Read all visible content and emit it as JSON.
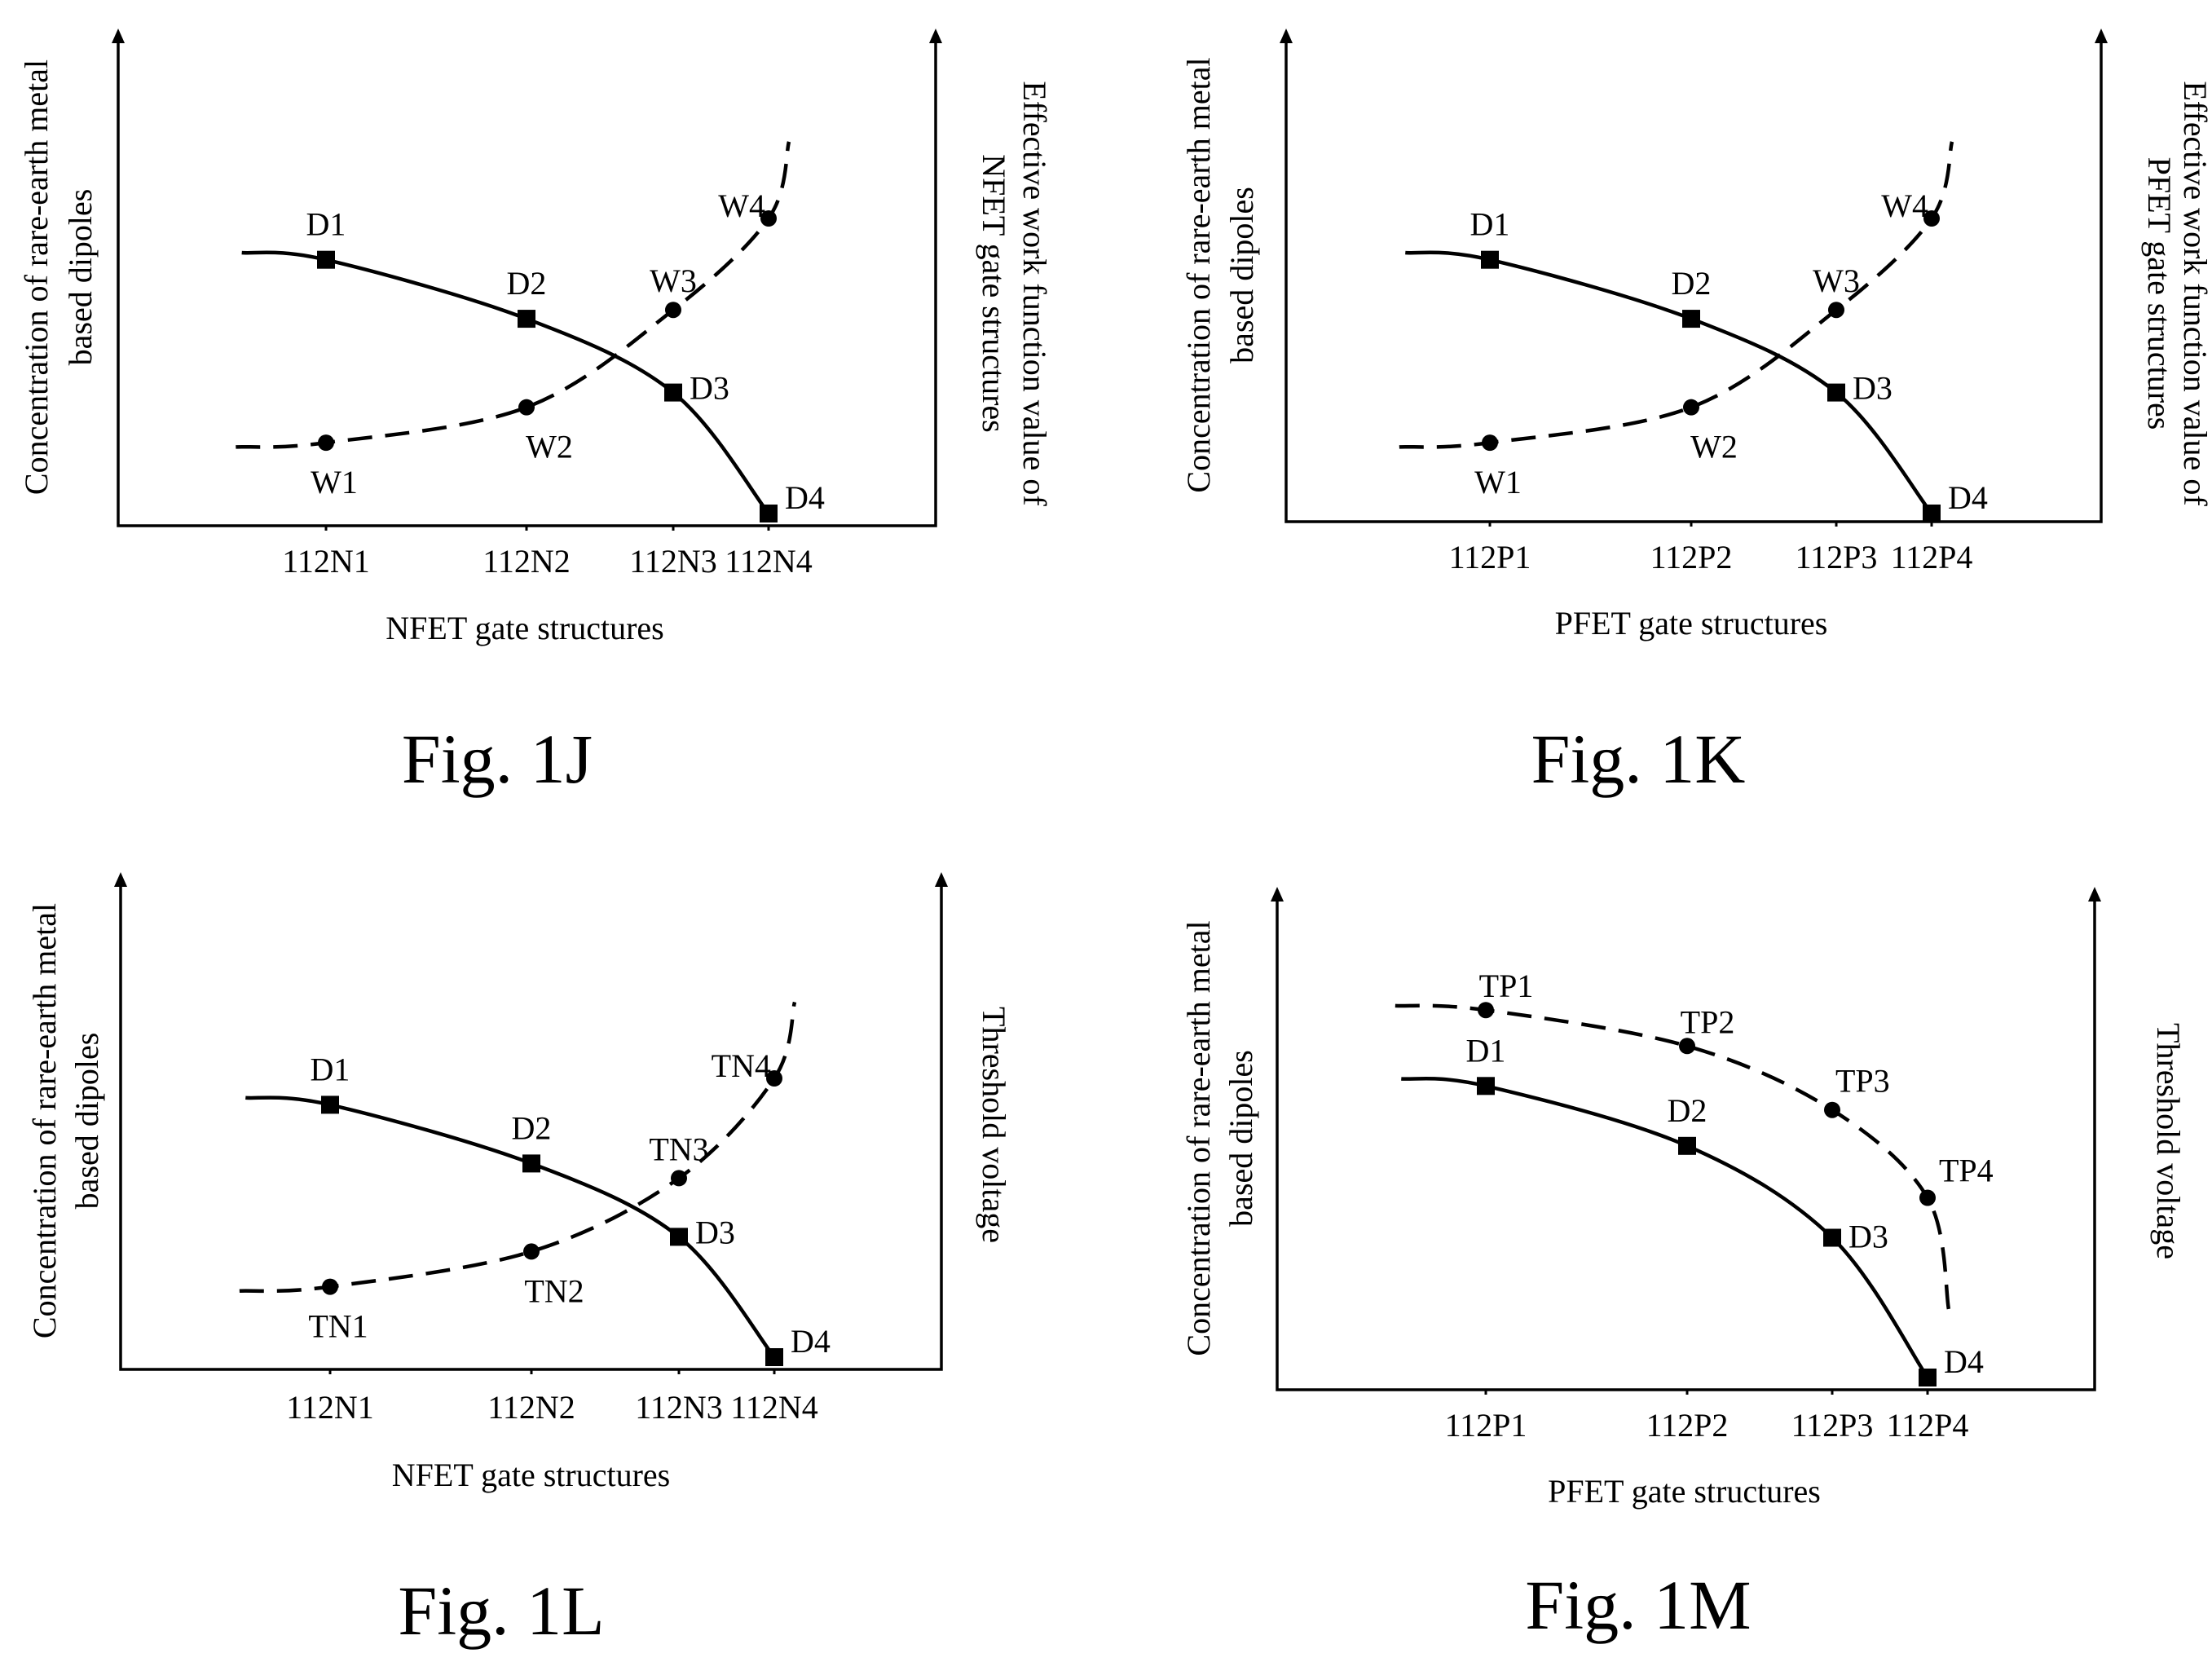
{
  "chart_data": [
    {
      "type": "line",
      "caption": "Fig. 1J",
      "xlabel": "NFET gate structures",
      "ylabel_left": [
        "Concentration of rare-earth metal",
        "based dipoles"
      ],
      "ylabel_right": [
        "Effective work function value of",
        "NFET gate structures"
      ],
      "categories": [
        "112N1",
        "112N2",
        "112N3",
        "112N4"
      ],
      "series": [
        {
          "style": "solid",
          "marker": "square",
          "labels": [
            "D1",
            "D2",
            "D3",
            "D4"
          ],
          "values": [
            0.86,
            0.66,
            0.41,
            0.0
          ]
        },
        {
          "style": "dashed",
          "marker": "circle",
          "labels": [
            "W1",
            "W2",
            "W3",
            "W4"
          ],
          "values": [
            0.24,
            0.36,
            0.69,
            1.0
          ]
        }
      ]
    },
    {
      "type": "line",
      "caption": "Fig. 1K",
      "xlabel": "PFET gate structures",
      "ylabel_left": [
        "Concentration of rare-earth metal",
        "based dipoles"
      ],
      "ylabel_right": [
        "Effective work function value of",
        "PFET gate structures"
      ],
      "categories": [
        "112P1",
        "112P2",
        "112P3",
        "112P4"
      ],
      "series": [
        {
          "style": "solid",
          "marker": "square",
          "labels": [
            "D1",
            "D2",
            "D3",
            "D4"
          ],
          "values": [
            0.86,
            0.66,
            0.41,
            0.0
          ]
        },
        {
          "style": "dashed",
          "marker": "circle",
          "labels": [
            "W1",
            "W2",
            "W3",
            "W4"
          ],
          "values": [
            0.24,
            0.36,
            0.69,
            1.0
          ]
        }
      ]
    },
    {
      "type": "line",
      "caption": "Fig. 1L",
      "xlabel": "NFET gate structures",
      "ylabel_left": [
        "Concentration of rare-earth metal",
        "based dipoles"
      ],
      "ylabel_right": [
        "Threshold voltage"
      ],
      "categories": [
        "112N1",
        "112N2",
        "112N3",
        "112N4"
      ],
      "series": [
        {
          "style": "solid",
          "marker": "square",
          "labels": [
            "D1",
            "D2",
            "D3",
            "D4"
          ],
          "values": [
            0.86,
            0.66,
            0.41,
            0.0
          ]
        },
        {
          "style": "dashed",
          "marker": "circle",
          "labels": [
            "TN1",
            "TN2",
            "TN3",
            "TN4"
          ],
          "values": [
            0.24,
            0.36,
            0.61,
            0.95
          ]
        }
      ]
    },
    {
      "type": "line",
      "caption": "Fig. 1M",
      "xlabel": "PFET gate structures",
      "ylabel_left": [
        "Concentration of rare-earth metal",
        "based dipoles"
      ],
      "ylabel_right": [
        "Threshold voltage"
      ],
      "categories": [
        "112P1",
        "112P2",
        "112P3",
        "112P4"
      ],
      "series": [
        {
          "style": "solid",
          "marker": "square",
          "labels": [
            "D1",
            "D2",
            "D3",
            "D4"
          ],
          "values": [
            0.73,
            0.58,
            0.35,
            0.0
          ]
        },
        {
          "style": "dashed",
          "marker": "circle",
          "labels": [
            "TP1",
            "TP2",
            "TP3",
            "TP4"
          ],
          "values": [
            0.92,
            0.83,
            0.67,
            0.45
          ]
        }
      ]
    }
  ]
}
